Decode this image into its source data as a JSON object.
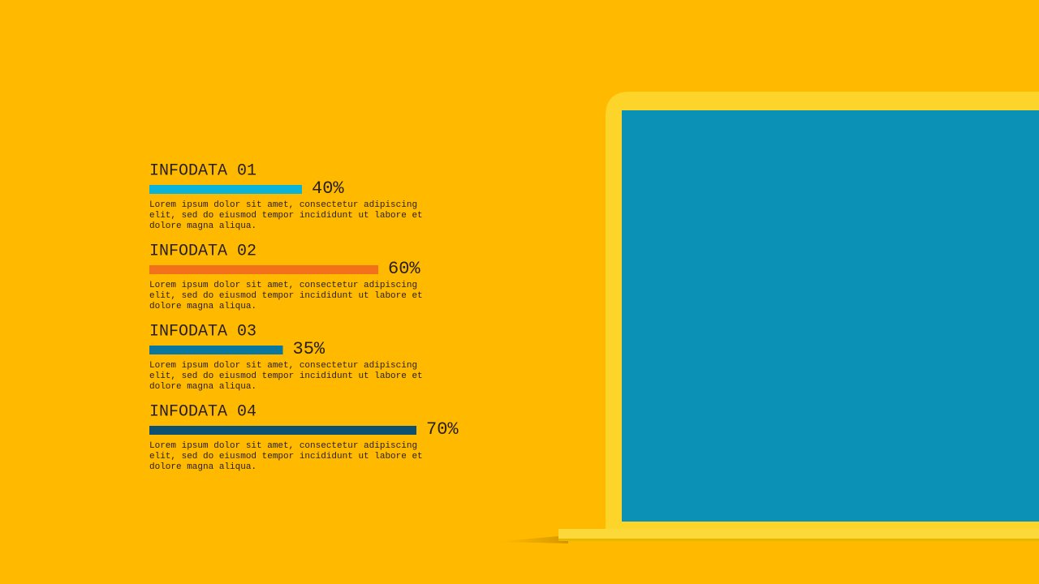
{
  "chart_data": {
    "type": "bar",
    "categories": [
      "INFODATA 01",
      "INFODATA 02",
      "INFODATA 03",
      "INFODATA 04"
    ],
    "values": [
      40,
      60,
      35,
      70
    ],
    "value_labels": [
      "40%",
      "60%",
      "35%",
      "70%"
    ],
    "colors": [
      "#0ab4d8",
      "#f4711c",
      "#0a77a0",
      "#0d5070"
    ],
    "descriptions": [
      [
        "Lorem ipsum dolor sit amet, consectetur adipiscing",
        "elit, sed do eiusmod tempor incididunt ut labore et",
        "dolore magna aliqua."
      ],
      [
        "Lorem ipsum dolor sit amet, consectetur adipiscing",
        "elit, sed do eiusmod tempor incididunt ut labore et",
        "dolore magna aliqua."
      ],
      [
        "Lorem ipsum dolor sit amet, consectetur adipiscing",
        "elit, sed do eiusmod tempor incididunt ut labore et",
        "dolore magna aliqua."
      ],
      [
        "Lorem ipsum dolor sit amet, consectetur adipiscing",
        "elit, sed do eiusmod tempor incididunt ut labore et",
        "dolore magna aliqua."
      ]
    ]
  }
}
